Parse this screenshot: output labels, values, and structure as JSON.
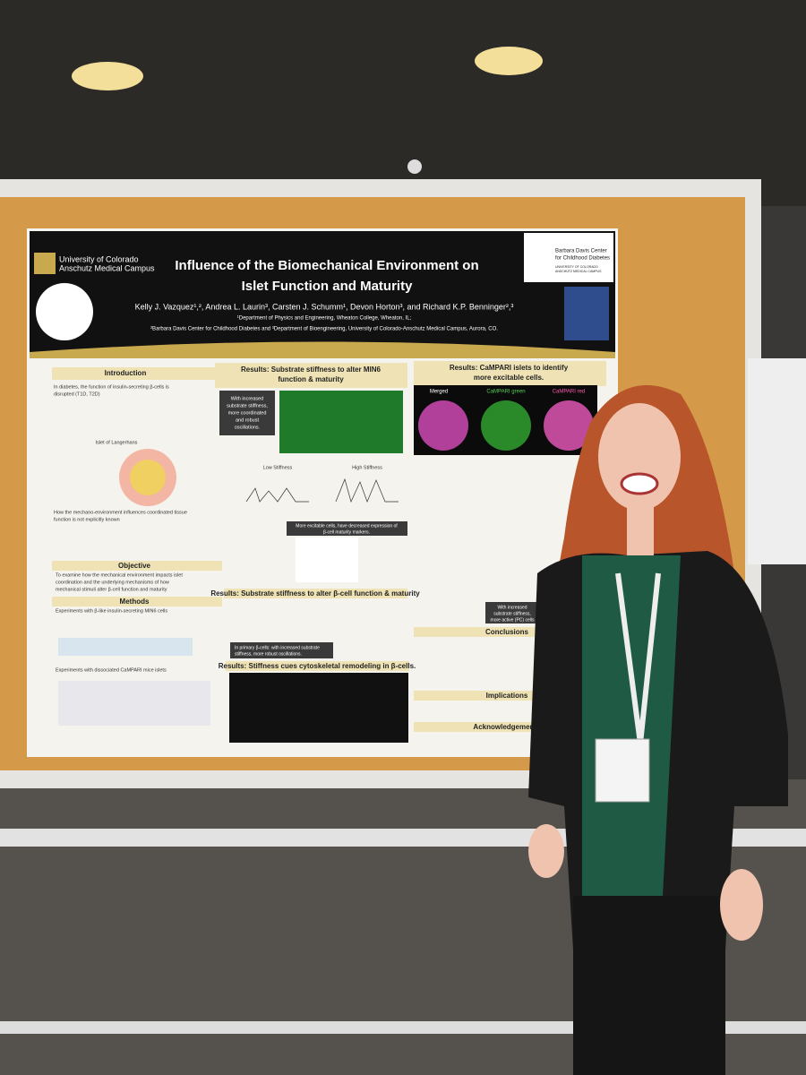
{
  "poster": {
    "university": "University of Colorado",
    "campus": "Anschutz Medical Campus",
    "title_lines": [
      "Influence of the Biomechanical Environment on",
      "Islet Function and Maturity"
    ],
    "authors": "Kelly J. Vazquez¹,², Andrea L. Laurin³, Carsten J. Schumm¹, Devon Horton³, and Richard K.P. Benninger²,³",
    "affiliations": [
      "¹Department of Physics and Engineering, Wheaton College, Wheaton, IL;",
      "²Barbara Davis Center for Childhood Diabetes and ³Department of Bioengineering, University of Colorado-Anschutz Medical Campus, Aurora, CO."
    ],
    "center_logo": [
      "Barbara Davis Center",
      "for Childhood Diabetes"
    ],
    "center_logo_sub": [
      "UNIVERSITY OF COLORADO",
      "ANSCHUTZ MEDICAL CAMPUS"
    ],
    "introduction": {
      "heading": "Introduction",
      "lines": [
        "In diabetes, the function of insulin-secreting β-cells is",
        "disrupted (T1D, T2D)"
      ],
      "diagram_label": "Islet of Langerhans",
      "question": [
        "How the mechano-environment influences coordinated tissue",
        "function is not explicitly known"
      ]
    },
    "objective": {
      "heading": "Objective",
      "lines": [
        "To examine how the mechanical environment impacts islet",
        "coordination and the underlying mechanisms of how",
        "mechanical stimuli alter β-cell function and maturity"
      ]
    },
    "methods": {
      "heading": "Methods",
      "first": "Experiments with β-like insulin-secreting MIN6 cells",
      "second": "Experiments with dissociated CaMPARI mice islets"
    },
    "results_min6": {
      "heading": [
        "Results: Substrate stiffness to alter MIN6",
        "function & maturity"
      ],
      "callout": [
        "With increased",
        "substrate stiffness,",
        "more coordinated",
        "and robust",
        "oscillations."
      ],
      "low": "Low Stiffness",
      "high": "High Stiffness",
      "maturity": [
        "More excitable cells, have decreased expression of",
        "β-cell maturity markers."
      ]
    },
    "results_beta": {
      "heading": "Results: Substrate stiffness to alter β-cell function & maturity",
      "callout": [
        "In primary β-cells: with increased substrate",
        "stiffness, more robust oscillations."
      ]
    },
    "results_cyto": {
      "heading": "Results: Stiffness cues cytoskeletal remodeling in β-cells."
    },
    "results_campari": {
      "heading": [
        "Results: CaMPARI islets to identify",
        "more excitable cells."
      ],
      "panels": [
        "Merged",
        "CaMPARI green",
        "CaMPARI red"
      ],
      "callout": [
        "With increased",
        "substrate stiffness,",
        "more active (PC) cells"
      ]
    },
    "conclusions": {
      "heading": "Conclusions"
    },
    "implications": {
      "heading": "Implications"
    },
    "acknowledgements": {
      "heading": "Acknowledgements"
    }
  }
}
